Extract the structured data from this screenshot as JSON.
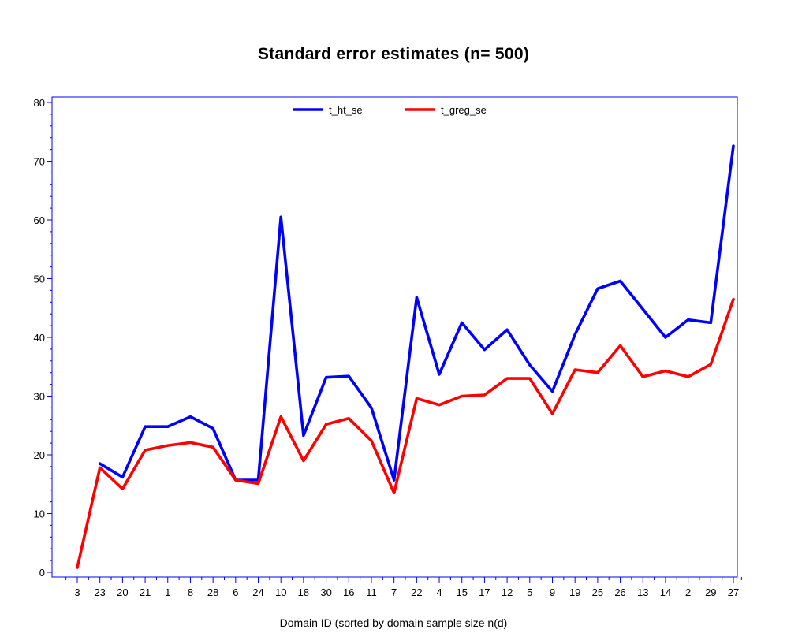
{
  "chart_data": {
    "type": "line",
    "title": "Standard error estimates (n= 500)",
    "xlabel": "Domain ID (sorted by domain sample size n(d)",
    "ylabel": "",
    "ylim": [
      0,
      80
    ],
    "yticks": [
      0,
      10,
      20,
      30,
      40,
      50,
      60,
      70,
      80
    ],
    "grid": false,
    "legend_position": "top-center",
    "categories": [
      "3",
      "23",
      "20",
      "21",
      "1",
      "8",
      "28",
      "6",
      "24",
      "10",
      "18",
      "30",
      "16",
      "11",
      "7",
      "22",
      "4",
      "15",
      "17",
      "12",
      "5",
      "9",
      "19",
      "25",
      "26",
      "13",
      "14",
      "2",
      "29",
      "27"
    ],
    "series": [
      {
        "name": "t_ht_se",
        "color": "#0000ff",
        "values": [
          null,
          18.5,
          16.2,
          24.8,
          24.8,
          26.5,
          24.5,
          15.7,
          15.7,
          60.5,
          23.3,
          33.2,
          33.4,
          28.0,
          15.7,
          46.8,
          33.7,
          42.5,
          37.9,
          41.3,
          35.3,
          30.8,
          40.5,
          48.3,
          49.6,
          44.8,
          40.0,
          43.0,
          42.5,
          72.6
        ]
      },
      {
        "name": "t_greg_se",
        "color": "#ff0000",
        "values": [
          0.8,
          17.8,
          14.2,
          20.8,
          21.6,
          22.1,
          21.3,
          15.7,
          15.1,
          26.5,
          19.0,
          25.2,
          26.2,
          22.4,
          13.5,
          29.6,
          28.5,
          30.0,
          30.2,
          33.0,
          33.0,
          27.0,
          34.5,
          34.0,
          38.6,
          33.3,
          34.3,
          33.3,
          35.4,
          46.5
        ]
      }
    ]
  }
}
